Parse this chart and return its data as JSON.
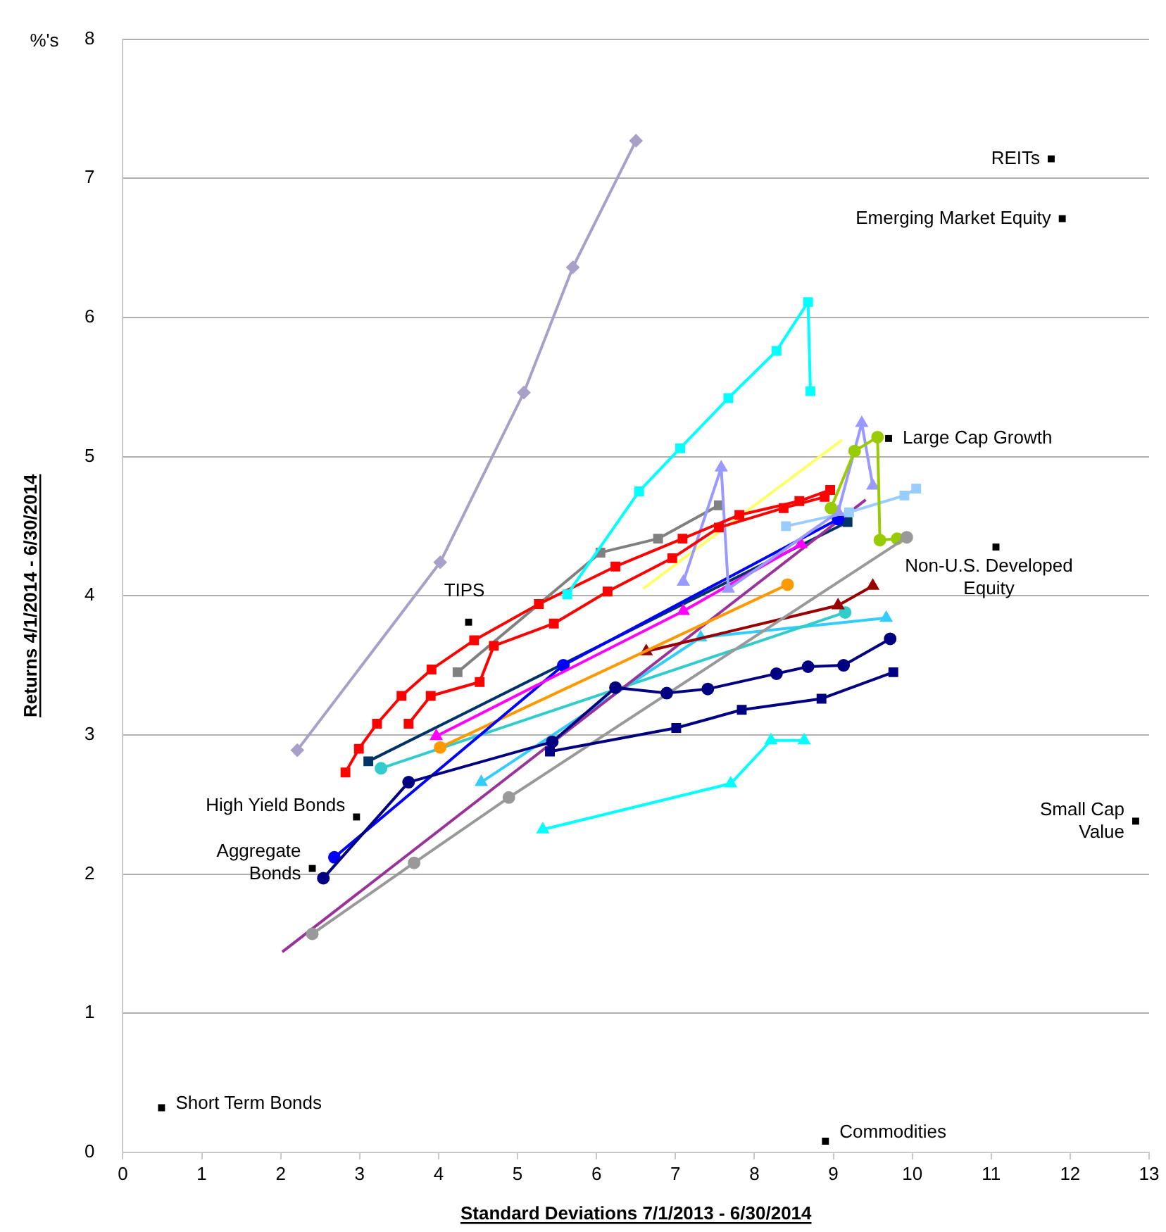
{
  "chart_data": {
    "type": "line",
    "xlabel": "Standard Deviations 7/1/2013 - 6/30/2014",
    "ylabel": "Returns 4/1/2014 - 6/30/2014",
    "xlim": [
      0,
      13
    ],
    "xticks": [
      0,
      1,
      2,
      3,
      4,
      5,
      6,
      7,
      8,
      9,
      10,
      11,
      12,
      13
    ],
    "ylim": [
      0,
      8
    ],
    "yticks": [
      0,
      1,
      2,
      3,
      4,
      5,
      6,
      7,
      8
    ],
    "grid": "y",
    "legend": false,
    "annotations": [
      "%'s",
      {
        "text": "REITs",
        "x": 11.76,
        "y": 7.14
      },
      {
        "text": "Emerging Market Equity",
        "x": 11.9,
        "y": 6.71
      },
      {
        "text": "Large Cap Growth",
        "x": 9.7,
        "y": 5.13
      },
      {
        "text": "Non-U.S. Developed Equity",
        "x": 11.06,
        "y": 4.35
      },
      {
        "text": "TIPS",
        "x": 4.38,
        "y": 3.81
      },
      {
        "text": "High Yield Bonds",
        "x": 2.96,
        "y": 2.41
      },
      {
        "text": "Aggregate Bonds",
        "x": 2.4,
        "y": 2.04
      },
      {
        "text": "Small Cap Value",
        "x": 12.83,
        "y": 2.38
      },
      {
        "text": "Short Term Bonds",
        "x": 0.49,
        "y": 0.32
      },
      {
        "text": "Commodities",
        "x": 8.9,
        "y": 0.08
      }
    ],
    "series": [
      {
        "type": "scatter",
        "color": "#000000",
        "marker": "square",
        "x": [
          11.76,
          11.9,
          9.7,
          11.06,
          4.38,
          2.96,
          2.4,
          12.83,
          0.49,
          8.9
        ],
        "values": [
          7.14,
          6.71,
          5.13,
          4.35,
          3.81,
          2.41,
          2.04,
          2.38,
          0.32,
          0.08
        ]
      },
      {
        "color": "#a9a0c8",
        "marker": "diamond",
        "x": [
          2.21,
          4.02,
          5.08,
          5.7,
          6.5
        ],
        "values": [
          2.89,
          4.24,
          5.46,
          6.36,
          7.27
        ]
      },
      {
        "color": "#00ffff",
        "marker": "square",
        "x": [
          5.63,
          6.54,
          7.06,
          7.67,
          8.28,
          8.68,
          8.71
        ],
        "values": [
          4.01,
          4.75,
          5.06,
          5.42,
          5.76,
          6.11,
          5.47
        ]
      },
      {
        "color": "#00ffff",
        "marker": "triangle",
        "x": [
          5.32,
          7.7,
          8.21,
          8.63
        ],
        "values": [
          2.32,
          2.65,
          2.96,
          2.96
        ]
      },
      {
        "color": "#ff0000",
        "marker": "square",
        "x": [
          2.82,
          2.99,
          3.22,
          3.53,
          3.91,
          4.45,
          5.27,
          6.24,
          7.09,
          7.81,
          8.57,
          8.96
        ],
        "values": [
          2.73,
          2.9,
          3.08,
          3.28,
          3.47,
          3.68,
          3.94,
          4.21,
          4.41,
          4.58,
          4.68,
          4.76
        ]
      },
      {
        "color": "#ff0000",
        "marker": "square",
        "x": [
          3.62,
          3.9,
          4.52,
          4.7,
          5.46,
          6.14,
          6.96,
          7.55,
          8.37,
          8.89
        ],
        "values": [
          3.08,
          3.28,
          3.38,
          3.64,
          3.8,
          4.03,
          4.27,
          4.49,
          4.63,
          4.71
        ]
      },
      {
        "color": "#000080",
        "marker": "square",
        "x": [
          5.41,
          7.01,
          7.84,
          8.85,
          9.76
        ],
        "values": [
          2.88,
          3.05,
          3.18,
          3.26,
          3.45
        ]
      },
      {
        "color": "#000080",
        "marker": "circle",
        "x": [
          2.54,
          3.62,
          5.44,
          6.24,
          6.89,
          7.41,
          8.28,
          8.68,
          9.13,
          9.72
        ],
        "values": [
          1.97,
          2.66,
          2.95,
          3.34,
          3.3,
          3.33,
          3.44,
          3.49,
          3.5,
          3.69
        ]
      },
      {
        "color": "#999999",
        "marker": "circle",
        "x": [
          2.4,
          3.69,
          4.89,
          9.93
        ],
        "values": [
          1.57,
          2.08,
          2.55,
          4.42
        ]
      },
      {
        "color": "#99cc00",
        "marker": "circle",
        "x": [
          8.97,
          9.27,
          9.56,
          9.59,
          9.81
        ],
        "values": [
          4.63,
          5.04,
          5.14,
          4.4,
          4.41
        ]
      },
      {
        "color": "#9999ff",
        "marker": "triangle",
        "x": [
          7.1,
          7.58,
          7.67,
          9.06,
          9.36,
          9.5
        ],
        "values": [
          4.1,
          4.92,
          4.05,
          4.6,
          5.24,
          4.79
        ]
      },
      {
        "color": "#99ccff",
        "marker": "square",
        "x": [
          8.4,
          9.2,
          9.9,
          10.05
        ],
        "values": [
          4.5,
          4.6,
          4.72,
          4.77
        ]
      },
      {
        "color": "#ff00ff",
        "marker": "triangle",
        "x": [
          3.97,
          7.1,
          8.59
        ],
        "values": [
          2.99,
          3.89,
          4.37
        ]
      },
      {
        "color": "#0000ff",
        "marker": "circle",
        "x": [
          2.68,
          5.58,
          9.06
        ],
        "values": [
          2.12,
          3.5,
          4.55
        ]
      },
      {
        "color": "#ff9900",
        "marker": "circle",
        "x": [
          4.02,
          8.42
        ],
        "values": [
          2.91,
          4.08
        ]
      },
      {
        "color": "#990000",
        "marker": "triangle",
        "x": [
          6.63,
          9.06,
          9.5
        ],
        "values": [
          3.6,
          3.93,
          4.07
        ]
      },
      {
        "color": "#993399",
        "marker": "none",
        "x": [
          2.02,
          9.41
        ],
        "values": [
          1.44,
          4.69
        ]
      },
      {
        "color": "#33cccc",
        "marker": "circle",
        "x": [
          3.27,
          9.15
        ],
        "values": [
          2.76,
          3.88
        ]
      },
      {
        "color": "#ffff66",
        "marker": "none",
        "x": [
          6.59,
          9.11
        ],
        "values": [
          4.05,
          5.12
        ]
      },
      {
        "color": "#808080",
        "marker": "square",
        "x": [
          4.24,
          6.05,
          6.78,
          7.55
        ],
        "values": [
          3.45,
          4.31,
          4.41,
          4.65
        ]
      },
      {
        "color": "#33ccff",
        "marker": "triangle",
        "x": [
          4.54,
          7.32,
          9.67
        ],
        "values": [
          2.66,
          3.7,
          3.84
        ]
      },
      {
        "color": "#003366",
        "marker": "square",
        "x": [
          3.11,
          9.18
        ],
        "values": [
          2.81,
          4.53
        ]
      }
    ]
  }
}
